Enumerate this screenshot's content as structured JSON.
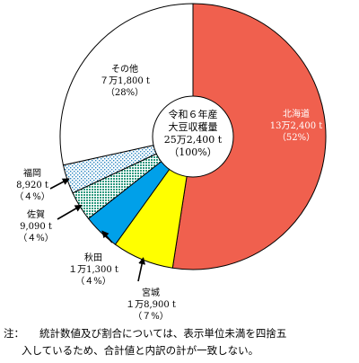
{
  "chart_data": {
    "type": "pie",
    "title": "",
    "center_label": [
      "令和６年産",
      "大豆収穫量",
      "25万2,400 t",
      "（100%）"
    ],
    "slices": [
      {
        "name": "北海道",
        "value": 132400,
        "share_label": "（52%）",
        "value_label": "13万2,400 t",
        "color": "#F0604E",
        "pattern": "solid"
      },
      {
        "name": "宮城",
        "value": 18900,
        "share_label": "（７%）",
        "value_label": "１万8,900 t",
        "color": "#FFFF00",
        "pattern": "solid"
      },
      {
        "name": "秋田",
        "value": 11300,
        "share_label": "（４%）",
        "value_label": "１万1,300 t",
        "color": "#00A0E9",
        "pattern": "solid"
      },
      {
        "name": "佐賀",
        "value": 9090,
        "share_label": "（４%）",
        "value_label": "9,090 t",
        "color": "#3FA58A",
        "pattern": "dots-dense"
      },
      {
        "name": "福岡",
        "value": 8920,
        "share_label": "（４%）",
        "value_label": "8,920 t",
        "color": "#2E8FC8",
        "pattern": "dots-sparse"
      },
      {
        "name": "その他",
        "value": 71800,
        "share_label": "（28%）",
        "value_label": "７万1,800 t",
        "color": "#FFFFFF",
        "pattern": "solid"
      }
    ]
  },
  "note": {
    "head": "注：",
    "line1": "統計数値及び割合については、表示単位未満を四捨五",
    "line2": "入しているため、合計値と内訳の計が一致しない。"
  }
}
